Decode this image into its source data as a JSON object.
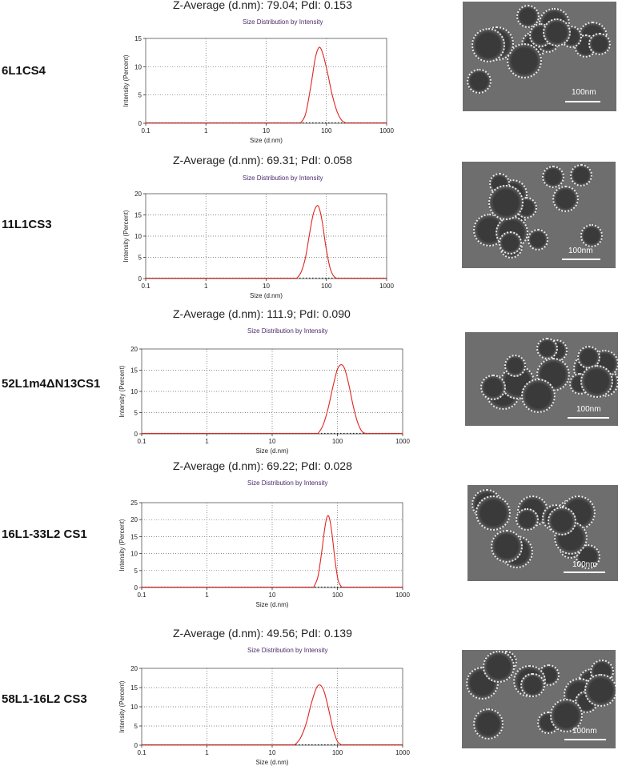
{
  "panels": [
    {
      "label": "6L1CS4",
      "zavg_text": "Z-Average (d.nm): 79.04;  PdI: 0.153",
      "dist_title": "Size Distribution by Intensity",
      "scale_text": "100nm"
    },
    {
      "label": "11L1CS3",
      "zavg_text": "Z-Average (d.nm): 69.31;  PdI: 0.058",
      "dist_title": "Size Distribution by Intensity",
      "scale_text": "100nm"
    },
    {
      "label": "52L1m4ΔN13CS1",
      "zavg_text": "Z-Average (d.nm): 111.9;  PdI: 0.090",
      "dist_title": "Size Distribution by Intensity",
      "scale_text": "100nm"
    },
    {
      "label": "16L1-33L2 CS1",
      "zavg_text": "Z-Average (d.nm): 69.22;  PdI: 0.028",
      "dist_title": "Size Distribution by Intensity",
      "scale_text": "100nm"
    },
    {
      "label": "58L1-16L2 CS3",
      "zavg_text": "Z-Average (d.nm): 49.56;  PdI: 0.139",
      "dist_title": "Size Distribution by Intensity",
      "scale_text": "100nm"
    }
  ],
  "chart_data": [
    {
      "type": "line",
      "xscale": "log",
      "xlim": [
        0.1,
        1000
      ],
      "ylim": [
        0,
        15
      ],
      "yticks": [
        0,
        5,
        10,
        15
      ],
      "xticks": [
        "0.1",
        "1",
        "10",
        "100",
        "1000"
      ],
      "xlabel": "Size (d.nm)",
      "ylabel": "Intensity (Percent)",
      "line_color": "#e0261f",
      "x": [
        37,
        45,
        55,
        65,
        73,
        80,
        90,
        105,
        125,
        150,
        180,
        220
      ],
      "y": [
        0.0,
        1.6,
        6.5,
        11.4,
        13.2,
        13.3,
        11.8,
        8.8,
        5.0,
        2.1,
        0.5,
        0.0
      ]
    },
    {
      "type": "line",
      "xscale": "log",
      "xlim": [
        0.1,
        1000
      ],
      "ylim": [
        0,
        20
      ],
      "yticks": [
        0,
        5,
        10,
        15,
        20
      ],
      "xticks": [
        "0.1",
        "1",
        "10",
        "100",
        "1000"
      ],
      "xlabel": "Size (d.nm)",
      "ylabel": "Intensity (Percent)",
      "line_color": "#e0261f",
      "x": [
        32,
        38,
        45,
        52,
        60,
        68,
        75,
        85,
        98,
        115,
        135,
        160
      ],
      "y": [
        0.0,
        1.5,
        5.0,
        10.2,
        15.0,
        17.0,
        16.8,
        13.5,
        7.5,
        2.5,
        0.4,
        0.0
      ]
    },
    {
      "type": "line",
      "xscale": "log",
      "xlim": [
        0.1,
        1000
      ],
      "ylim": [
        0,
        20
      ],
      "yticks": [
        0,
        5,
        10,
        15,
        20
      ],
      "xticks": [
        "0.1",
        "1",
        "10",
        "100",
        "1000"
      ],
      "xlabel": "Size (d.nm)",
      "ylabel": "Intensity (Percent)",
      "line_color": "#e0261f",
      "x": [
        50,
        60,
        72,
        85,
        100,
        115,
        130,
        150,
        175,
        205,
        240,
        290
      ],
      "y": [
        0.0,
        2.0,
        6.0,
        11.0,
        15.2,
        16.3,
        15.2,
        11.5,
        6.5,
        2.6,
        0.5,
        0.0
      ]
    },
    {
      "type": "line",
      "xscale": "log",
      "xlim": [
        0.1,
        1000
      ],
      "ylim": [
        0,
        25
      ],
      "yticks": [
        0,
        5,
        10,
        15,
        20,
        25
      ],
      "xticks": [
        "0.1",
        "1",
        "10",
        "100",
        "1000"
      ],
      "xlabel": "Size (d.nm)",
      "ylabel": "Intensity (Percent)",
      "line_color": "#e0261f",
      "x": [
        43,
        50,
        57,
        64,
        70,
        76,
        83,
        92,
        103,
        118
      ],
      "y": [
        0.0,
        3.0,
        10.0,
        17.5,
        21.0,
        20.2,
        15.5,
        8.0,
        2.0,
        0.0
      ]
    },
    {
      "type": "line",
      "xscale": "log",
      "xlim": [
        0.1,
        1000
      ],
      "ylim": [
        0,
        20
      ],
      "yticks": [
        0,
        5,
        10,
        15,
        20
      ],
      "xticks": [
        "0.1",
        "1",
        "10",
        "100",
        "1000"
      ],
      "xlabel": "Size (d.nm)",
      "ylabel": "Intensity (Percent)",
      "line_color": "#e0261f",
      "x": [
        22,
        27,
        33,
        40,
        48,
        55,
        63,
        73,
        85,
        100,
        118
      ],
      "y": [
        0.0,
        1.8,
        5.5,
        11.0,
        15.0,
        15.6,
        13.8,
        9.5,
        4.5,
        1.0,
        0.0
      ]
    }
  ]
}
